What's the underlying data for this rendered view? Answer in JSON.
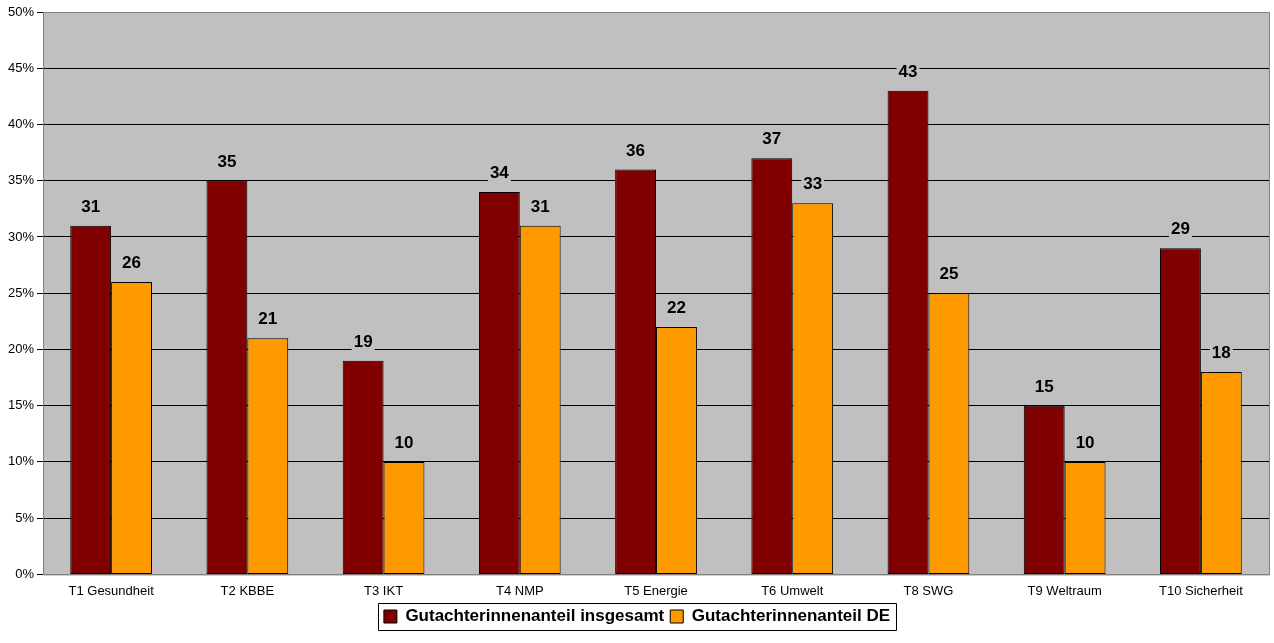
{
  "chart_data": {
    "type": "bar",
    "categories": [
      "T1 Gesundheit",
      "T2 KBBE",
      "T3 IKT",
      "T4 NMP",
      "T5 Energie",
      "T6 Umwelt",
      "T8 SWG",
      "T9 Weltraum",
      "T10 Sicherheit"
    ],
    "series": [
      {
        "name": "Gutachterinnenanteil insgesamt",
        "color": "#800000",
        "values": [
          31,
          35,
          19,
          34,
          36,
          37,
          43,
          15,
          29
        ]
      },
      {
        "name": "Gutachterinnenanteil DE",
        "color": "#ff9900",
        "values": [
          26,
          21,
          10,
          31,
          22,
          33,
          25,
          10,
          18
        ]
      }
    ],
    "ylim": [
      0,
      50
    ],
    "yticks": [
      {
        "value": 0,
        "label": "0%"
      },
      {
        "value": 5,
        "label": "5%"
      },
      {
        "value": 10,
        "label": "10%"
      },
      {
        "value": 15,
        "label": "15%"
      },
      {
        "value": 20,
        "label": "20%"
      },
      {
        "value": 25,
        "label": "25%"
      },
      {
        "value": 30,
        "label": "30%"
      },
      {
        "value": 35,
        "label": "35%"
      },
      {
        "value": 40,
        "label": "40%"
      },
      {
        "value": 45,
        "label": "45%"
      },
      {
        "value": 50,
        "label": "50%"
      }
    ],
    "grid": "y",
    "legend": "bottom",
    "data_labels": true
  }
}
